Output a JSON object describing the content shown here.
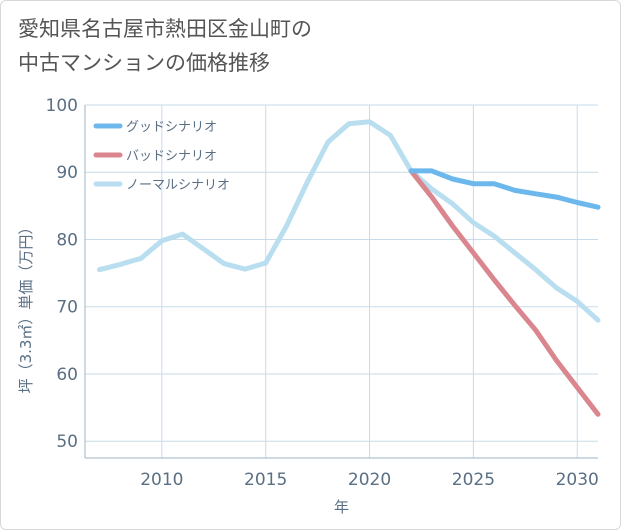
{
  "title_line1": "愛知県名古屋市熱田区金山町の",
  "title_line2": "中古マンションの価格推移",
  "chart_data": {
    "type": "line",
    "xlabel": "年",
    "ylabel": "坪（3.3㎡）単価（万円）",
    "xlim": [
      2006.3,
      2031
    ],
    "ylim": [
      47.5,
      100
    ],
    "xticks": [
      2010,
      2015,
      2020,
      2025,
      2030
    ],
    "yticks": [
      50,
      60,
      70,
      80,
      90,
      100
    ],
    "grid": true,
    "legend_position": "top-left",
    "series": [
      {
        "name": "グッドシナリオ",
        "color": "#6cb8ec",
        "points": [
          [
            2022,
            90.2
          ],
          [
            2023,
            90.2
          ],
          [
            2024,
            89.0
          ],
          [
            2025,
            88.3
          ],
          [
            2026,
            88.3
          ],
          [
            2027,
            87.3
          ],
          [
            2028,
            86.8
          ],
          [
            2029,
            86.3
          ],
          [
            2030,
            85.5
          ],
          [
            2031,
            84.8
          ]
        ]
      },
      {
        "name": "バッドシナリオ",
        "color": "#d9868e",
        "points": [
          [
            2022,
            90.2
          ],
          [
            2023,
            86.3
          ],
          [
            2024,
            82.0
          ],
          [
            2025,
            78.0
          ],
          [
            2026,
            74.0
          ],
          [
            2027,
            70.2
          ],
          [
            2028,
            66.5
          ],
          [
            2029,
            62.0
          ],
          [
            2030,
            58.0
          ],
          [
            2031,
            54.0
          ]
        ]
      },
      {
        "name": "ノーマルシナリオ",
        "color": "#b9def0",
        "points": [
          [
            2007,
            75.5
          ],
          [
            2008,
            76.3
          ],
          [
            2009,
            77.2
          ],
          [
            2010,
            79.8
          ],
          [
            2011,
            80.8
          ],
          [
            2012,
            78.6
          ],
          [
            2013,
            76.4
          ],
          [
            2014,
            75.6
          ],
          [
            2015,
            76.5
          ],
          [
            2016,
            82.0
          ],
          [
            2017,
            88.5
          ],
          [
            2018,
            94.5
          ],
          [
            2019,
            97.2
          ],
          [
            2020,
            97.5
          ],
          [
            2021,
            95.5
          ],
          [
            2022,
            90.2
          ],
          [
            2023,
            87.5
          ],
          [
            2024,
            85.3
          ],
          [
            2025,
            82.5
          ],
          [
            2026,
            80.5
          ],
          [
            2027,
            78.0
          ],
          [
            2028,
            75.5
          ],
          [
            2029,
            72.8
          ],
          [
            2030,
            70.8
          ],
          [
            2031,
            68.0
          ]
        ]
      }
    ]
  }
}
